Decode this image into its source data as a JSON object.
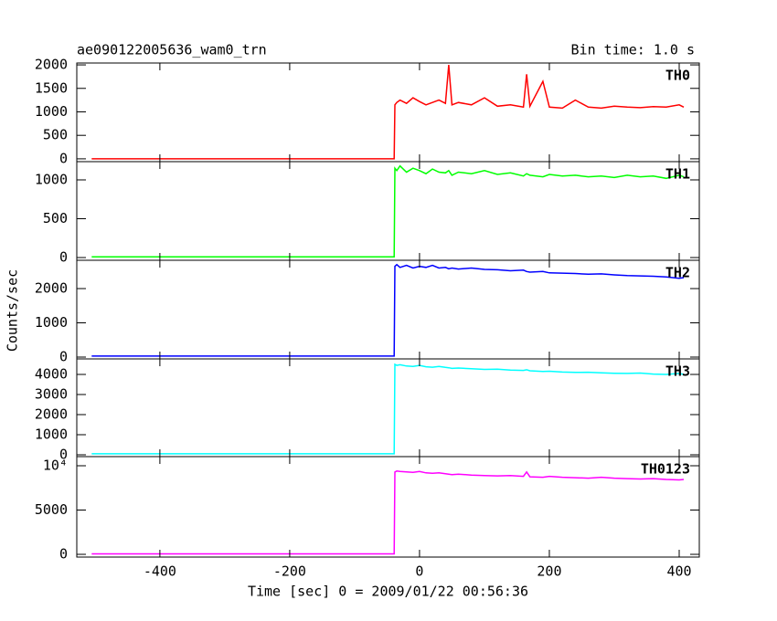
{
  "chart_data": [
    {
      "type": "line",
      "title": "ae090122005636_wam0_trn",
      "annotation": "Bin time: 1.0 s",
      "x": [
        -505,
        -450,
        -400,
        -350,
        -300,
        -250,
        -200,
        -150,
        -100,
        -50,
        -39,
        -38,
        -35,
        -30,
        -20,
        -10,
        0,
        10,
        20,
        30,
        40,
        45,
        50,
        60,
        80,
        100,
        120,
        140,
        160,
        165,
        170,
        190,
        200,
        220,
        240,
        260,
        280,
        300,
        320,
        340,
        360,
        380,
        400,
        407
      ],
      "series": [
        {
          "name": "TH0",
          "color": "#ff0000",
          "values": [
            0,
            0,
            0,
            0,
            0,
            0,
            0,
            0,
            0,
            0,
            0,
            1150,
            1200,
            1250,
            1180,
            1300,
            1220,
            1150,
            1200,
            1250,
            1180,
            2000,
            1150,
            1200,
            1150,
            1300,
            1120,
            1150,
            1100,
            1800,
            1120,
            1650,
            1100,
            1080,
            1250,
            1100,
            1080,
            1120,
            1100,
            1090,
            1110,
            1100,
            1150,
            1100
          ]
        }
      ],
      "xlim": [
        -528,
        431
      ],
      "xticks": [
        -400,
        -200,
        0,
        200,
        400
      ],
      "ylim": [
        -60,
        2040
      ],
      "yticks": [
        0,
        500,
        1000,
        1500,
        2000
      ]
    },
    {
      "type": "line",
      "x": [
        -505,
        -450,
        -400,
        -350,
        -300,
        -250,
        -200,
        -150,
        -100,
        -50,
        -39,
        -38,
        -35,
        -30,
        -20,
        -10,
        0,
        10,
        20,
        30,
        40,
        45,
        50,
        60,
        80,
        100,
        120,
        140,
        160,
        165,
        170,
        190,
        200,
        220,
        240,
        260,
        280,
        300,
        320,
        340,
        360,
        380,
        400,
        407
      ],
      "series": [
        {
          "name": "TH1",
          "color": "#00ff00",
          "values": [
            10,
            10,
            10,
            10,
            10,
            10,
            10,
            10,
            10,
            10,
            10,
            1150,
            1120,
            1180,
            1100,
            1150,
            1120,
            1080,
            1140,
            1100,
            1090,
            1120,
            1060,
            1100,
            1080,
            1120,
            1070,
            1090,
            1050,
            1080,
            1060,
            1040,
            1070,
            1050,
            1060,
            1040,
            1050,
            1030,
            1060,
            1040,
            1050,
            1020,
            1060,
            1040
          ]
        }
      ],
      "xlim": [
        -528,
        431
      ],
      "xticks": [
        -400,
        -200,
        0,
        200,
        400
      ],
      "ylim": [
        -35,
        1235
      ],
      "yticks": [
        0,
        500,
        1000
      ]
    },
    {
      "type": "line",
      "ylabel": "Counts/sec",
      "x": [
        -505,
        -450,
        -400,
        -350,
        -300,
        -250,
        -200,
        -150,
        -100,
        -50,
        -39,
        -38,
        -35,
        -30,
        -20,
        -10,
        0,
        10,
        20,
        30,
        40,
        45,
        50,
        60,
        80,
        100,
        120,
        140,
        160,
        165,
        170,
        190,
        200,
        220,
        240,
        260,
        280,
        300,
        320,
        340,
        360,
        380,
        400,
        407
      ],
      "series": [
        {
          "name": "TH2",
          "color": "#0000ff",
          "values": [
            30,
            30,
            30,
            30,
            30,
            30,
            30,
            30,
            30,
            30,
            30,
            2650,
            2700,
            2620,
            2680,
            2600,
            2650,
            2620,
            2680,
            2600,
            2620,
            2580,
            2600,
            2570,
            2600,
            2560,
            2550,
            2520,
            2540,
            2500,
            2480,
            2500,
            2460,
            2450,
            2440,
            2420,
            2430,
            2400,
            2380,
            2370,
            2360,
            2340,
            2300,
            2320
          ]
        }
      ],
      "xlim": [
        -528,
        431
      ],
      "xticks": [
        -400,
        -200,
        0,
        200,
        400
      ],
      "ylim": [
        -53,
        2827
      ],
      "yticks": [
        0,
        1000,
        2000
      ]
    },
    {
      "type": "line",
      "x": [
        -505,
        -450,
        -400,
        -350,
        -300,
        -250,
        -200,
        -150,
        -100,
        -50,
        -39,
        -38,
        -35,
        -30,
        -20,
        -10,
        0,
        10,
        20,
        30,
        40,
        45,
        50,
        60,
        80,
        100,
        120,
        140,
        160,
        165,
        170,
        190,
        200,
        220,
        240,
        260,
        280,
        300,
        320,
        340,
        360,
        380,
        400,
        407
      ],
      "series": [
        {
          "name": "TH3",
          "color": "#00ffff",
          "values": [
            50,
            50,
            50,
            50,
            50,
            50,
            50,
            50,
            50,
            50,
            50,
            4500,
            4450,
            4480,
            4420,
            4400,
            4450,
            4380,
            4360,
            4400,
            4350,
            4330,
            4300,
            4320,
            4280,
            4250,
            4260,
            4220,
            4200,
            4230,
            4180,
            4150,
            4160,
            4120,
            4100,
            4110,
            4080,
            4060,
            4050,
            4070,
            4020,
            4000,
            4050,
            4000
          ]
        }
      ],
      "xlim": [
        -528,
        431
      ],
      "xticks": [
        -400,
        -200,
        0,
        200,
        400
      ],
      "ylim": [
        -91,
        4773
      ],
      "yticks": [
        0,
        1000,
        2000,
        3000,
        4000
      ]
    },
    {
      "type": "line",
      "xlabel": "Time [sec] 0 = 2009/01/22 00:56:36",
      "x": [
        -505,
        -450,
        -400,
        -350,
        -300,
        -250,
        -200,
        -150,
        -100,
        -50,
        -39,
        -38,
        -35,
        -30,
        -20,
        -10,
        0,
        10,
        20,
        30,
        40,
        45,
        50,
        60,
        80,
        100,
        120,
        140,
        160,
        165,
        170,
        190,
        200,
        220,
        240,
        260,
        280,
        300,
        320,
        340,
        360,
        380,
        400,
        407
      ],
      "series": [
        {
          "name": "TH0123",
          "color": "#ff00ff",
          "values": [
            50,
            50,
            50,
            50,
            50,
            50,
            50,
            50,
            50,
            50,
            50,
            9300,
            9400,
            9350,
            9300,
            9250,
            9350,
            9200,
            9150,
            9200,
            9100,
            9050,
            9000,
            9050,
            8950,
            8900,
            8850,
            8900,
            8800,
            9300,
            8750,
            8700,
            8800,
            8700,
            8650,
            8600,
            8700,
            8600,
            8550,
            8500,
            8550,
            8450,
            8400,
            8450
          ]
        }
      ],
      "xlim": [
        -528,
        431
      ],
      "xticks": [
        -400,
        -200,
        0,
        200,
        400
      ],
      "ylim": [
        -310,
        11030
      ],
      "yticks": [
        0,
        5000,
        {
          "value": 10000,
          "label": "10⁴"
        }
      ]
    }
  ]
}
